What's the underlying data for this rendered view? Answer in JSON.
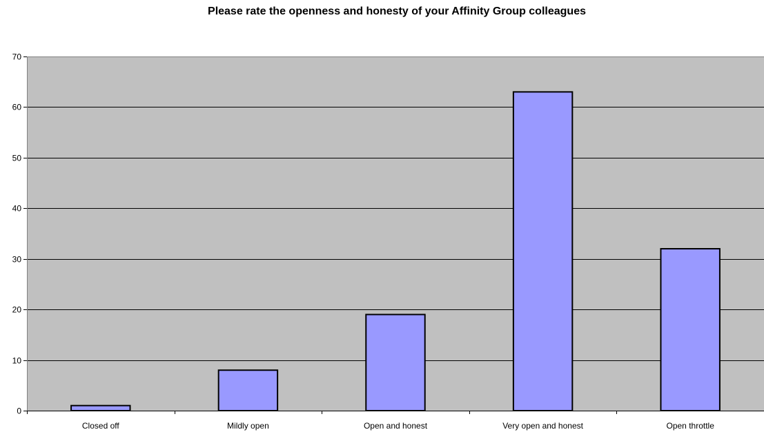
{
  "chart_data": {
    "type": "bar",
    "title": "Please rate the openness and honesty of your Affinity Group colleagues",
    "categories": [
      "Closed off",
      "Mildly open",
      "Open and honest",
      "Very open and honest",
      "Open throttle"
    ],
    "values": [
      1,
      8,
      19,
      63,
      32
    ],
    "ylim": [
      0,
      70
    ],
    "yticks": [
      0,
      10,
      20,
      30,
      40,
      50,
      60,
      70
    ],
    "grid": true,
    "legend": "none",
    "colors": {
      "bar_fill": "#9999ff",
      "bar_stroke": "#000000",
      "plot_background": "#c0c0c0",
      "gridline": "#000000"
    }
  }
}
